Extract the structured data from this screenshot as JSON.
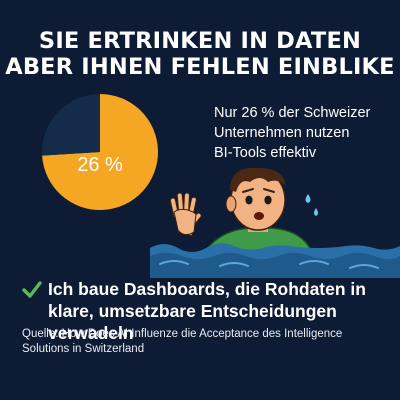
{
  "headline": {
    "line1": "SIE ERTRINKEN IN DATEN",
    "line2": "ABER IHNEN FEHLEN EINBLIKE"
  },
  "chart_data": {
    "type": "pie",
    "values": [
      26,
      74
    ],
    "colors": [
      "#f5a623",
      "#142b4a"
    ],
    "data_label": "26 %"
  },
  "stat": {
    "line1": "Nur 26 % der Schweizer",
    "line2": "Unternehmen nutzen",
    "line3": "BI-Tools effektiv"
  },
  "bullet": {
    "text": "Ich baue Dashboards, die Rohdaten in klare, umsetzbare Entscheidungen verwadeln"
  },
  "source": {
    "text": "Quelle: How Does AI Influenze die Acceptance des Intelligence Solutions in Switzerland"
  },
  "colors": {
    "background": "#0d1b35",
    "accent": "#f5a623",
    "check": "#5cb85c",
    "water": "#2a6fa8"
  },
  "icons": [
    "check-icon",
    "drowning-person-illustration"
  ]
}
